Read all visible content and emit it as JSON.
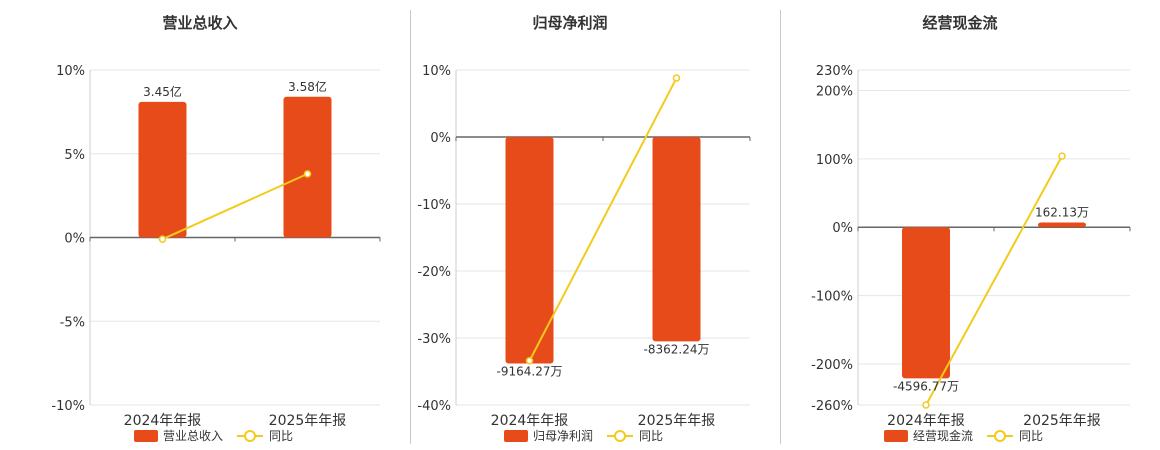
{
  "colors": {
    "bar": "#e84b1a",
    "line": "#f2cb1d",
    "grid": "#e6e6e6",
    "axis": "#666666",
    "text": "#333333"
  },
  "legend_line_label": "同比",
  "chart_data": [
    {
      "type": "bar",
      "title": "营业总收入",
      "categories": [
        "2024年年报",
        "2025年年报"
      ],
      "series": [
        {
          "name": "营业总收入",
          "type": "bar",
          "values": [
            8.1,
            8.4
          ],
          "labels": [
            "3.45亿",
            "3.58亿"
          ]
        },
        {
          "name": "同比",
          "type": "line",
          "values": [
            -0.1,
            3.8
          ]
        }
      ],
      "ylim": [
        -10,
        10
      ],
      "yticks": [
        10,
        5,
        0,
        -5,
        -10
      ],
      "ytick_labels": [
        "10%",
        "5%",
        "0%",
        "-5%",
        "-10%"
      ]
    },
    {
      "type": "bar",
      "title": "归母净利润",
      "categories": [
        "2024年年报",
        "2025年年报"
      ],
      "series": [
        {
          "name": "归母净利润",
          "type": "bar",
          "values": [
            -33.8,
            -30.5
          ],
          "labels": [
            "-9164.27万",
            "-8362.24万"
          ]
        },
        {
          "name": "同比",
          "type": "line",
          "values": [
            -33.4,
            8.8
          ]
        }
      ],
      "ylim": [
        -40,
        10
      ],
      "yticks": [
        10,
        0,
        -10,
        -20,
        -30,
        -40
      ],
      "ytick_labels": [
        "10%",
        "0%",
        "-10%",
        "-20%",
        "-30%",
        "-40%"
      ]
    },
    {
      "type": "bar",
      "title": "经营现金流",
      "categories": [
        "2024年年报",
        "2025年年报"
      ],
      "series": [
        {
          "name": "经营现金流",
          "type": "bar",
          "values": [
            -221,
            7
          ],
          "labels": [
            "-4596.77万",
            "162.13万"
          ]
        },
        {
          "name": "同比",
          "type": "line",
          "values": [
            -260,
            104
          ]
        }
      ],
      "ylim": [
        -260,
        230
      ],
      "yticks": [
        230,
        200,
        100,
        0,
        -100,
        -200,
        -260
      ],
      "ytick_labels": [
        "230%",
        "200%",
        "100%",
        "0%",
        "-100%",
        "-200%",
        "-260%"
      ]
    }
  ]
}
